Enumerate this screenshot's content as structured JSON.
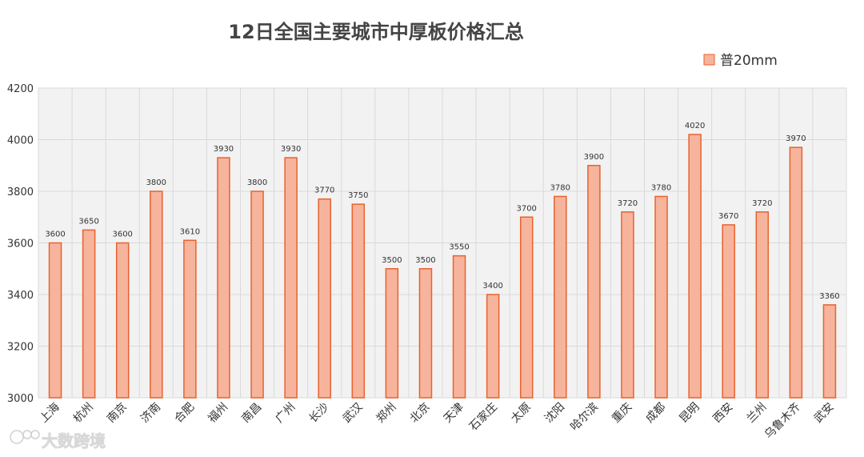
{
  "chart_data": {
    "type": "bar",
    "title": "12日全国主要城市中厚板价格汇总",
    "categories": [
      "上海",
      "杭州",
      "南京",
      "济南",
      "合肥",
      "福州",
      "南昌",
      "广州",
      "长沙",
      "武汉",
      "郑州",
      "北京",
      "天津",
      "石家庄",
      "太原",
      "沈阳",
      "哈尔滨",
      "重庆",
      "成都",
      "昆明",
      "西安",
      "兰州",
      "乌鲁木齐",
      "武安"
    ],
    "series": [
      {
        "name": "普20mm",
        "values": [
          3600,
          3650,
          3600,
          3800,
          3610,
          3930,
          3800,
          3930,
          3770,
          3750,
          3500,
          3500,
          3550,
          3400,
          3700,
          3780,
          3900,
          3720,
          3780,
          4020,
          3670,
          3720,
          3970,
          3360
        ]
      }
    ],
    "ylim": [
      3000,
      4200
    ],
    "yticks": [
      3000,
      3200,
      3400,
      3600,
      3800,
      4000,
      4200
    ],
    "grid": true,
    "legend_position": "top-right",
    "colors": {
      "bar_fill": "#f7b49c",
      "bar_stroke": "#e8622f",
      "grid": "#d9d9d9",
      "plot_bg": "#f2f2f2"
    }
  },
  "watermark": {
    "text": "大数跨境",
    "icon": "logo-icon"
  }
}
